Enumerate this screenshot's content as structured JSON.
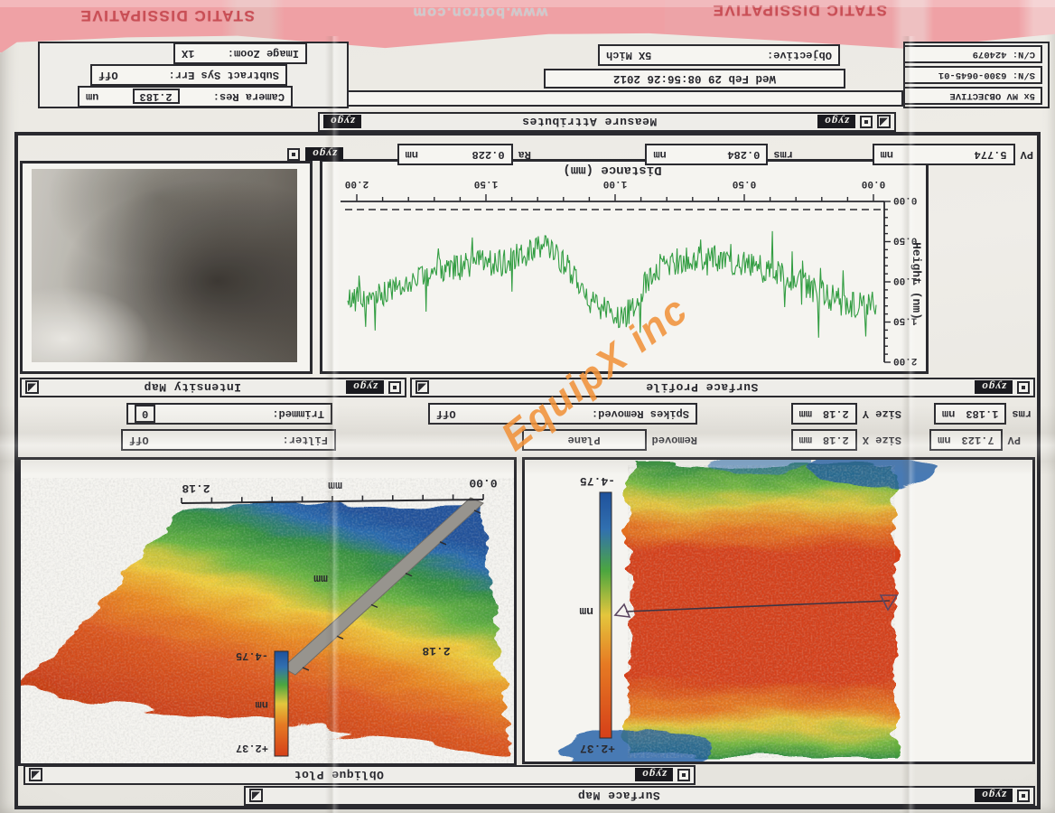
{
  "banner": {
    "left": "STATIC DISSIPATIVE",
    "center": "www.botron.com",
    "right": "STATIC DISSIPATIVE"
  },
  "watermark": "EquipX inc",
  "brand": "zygo",
  "windows": {
    "surface_map": {
      "title": "Surface Map",
      "z_top": "+2.37",
      "z_unit": "nm",
      "z_bottom": "-4.75"
    },
    "oblique_plot": {
      "title": "Oblique Plot",
      "x_start": "0.00",
      "x_unit": "mm",
      "x_end": "2.18",
      "y_end": "2.18",
      "y_unit": "mm",
      "z_top": "+2.37",
      "z_unit": "nm",
      "z_bottom": "-4.75"
    },
    "surface_profile": {
      "title": "Surface Profile",
      "xlabel": "Distance (mm)",
      "ylabel": "Height (nm)",
      "x_ticks": [
        "0.00",
        "0.50",
        "1.00",
        "1.50",
        "2.00"
      ],
      "y_ticks": [
        "2.00",
        "1.50",
        "1.00",
        "0.50",
        "0.00"
      ]
    },
    "intensity_map": {
      "title": "Intensity Map"
    }
  },
  "results_row": [
    {
      "label": "PV",
      "value": "5.774",
      "unit": "nm"
    },
    {
      "label": "rms",
      "value": "0.284",
      "unit": "nm"
    },
    {
      "label": "Ra",
      "value": "0.228",
      "unit": "nm"
    }
  ],
  "attr_rows": {
    "row1": [
      {
        "label": "PV",
        "value": "7.123",
        "unit": "nm"
      },
      {
        "label": "Size X",
        "value": "2.18",
        "unit": "mm"
      },
      {
        "label": "Removed",
        "value": "Plane",
        "unit": ""
      },
      {
        "label": "Filter:",
        "value": "Off",
        "unit": ""
      }
    ],
    "row2": [
      {
        "label": "rms",
        "value": "1.183",
        "unit": "nm"
      },
      {
        "label": "Size Y",
        "value": "2.18",
        "unit": "mm"
      },
      {
        "label": "Spikes Removed:",
        "value": "Off",
        "unit": ""
      },
      {
        "label": "Trimmed:",
        "value": "0",
        "unit": ""
      }
    ]
  },
  "measure_attributes": {
    "title": "Measure Attributes",
    "date": "Wed Feb 29 08:56:26 2012",
    "objective_label": "Objective:",
    "objective_value": "5X Mich",
    "camera_res_label": "Camera Res:",
    "camera_res_value": "2.183",
    "camera_res_unit": "um",
    "subtract_label": "Subtract Sys Err:",
    "subtract_value": "Off",
    "zoom_label": "Image Zoom:",
    "zoom_value": "1X"
  },
  "system_info": {
    "line1": "5x MV OBJECTIVE",
    "line2": "S/N: 6300-0645-01",
    "line3": "C/N: 424079"
  },
  "chart_data": [
    {
      "type": "line",
      "title": "Surface Profile",
      "xlabel": "Distance (mm)",
      "ylabel": "Height (nm)",
      "xlim": [
        0.0,
        2.18
      ],
      "ylim": [
        0.0,
        2.0
      ],
      "x_ticks": [
        0.0,
        0.5,
        1.0,
        1.5,
        2.0
      ],
      "y_ticks": [
        0.0,
        0.5,
        1.0,
        1.5,
        2.0
      ],
      "grid": false,
      "legend": "none",
      "series": [
        {
          "name": "surface height profile",
          "color": "#2f9e3f",
          "mean_nm": 0.93,
          "rms_nm": 0.284,
          "pv_nm": 5.774,
          "ra_nm": 0.228,
          "character": "dense noisy trace, dip near x=1.3mm, peak cluster near x=1.1mm"
        }
      ]
    },
    {
      "type": "heatmap",
      "title": "Surface Map",
      "unit": "nm",
      "scale_max": 2.37,
      "scale_min": -4.75,
      "size_x_mm": 2.18,
      "size_y_mm": 2.18,
      "description": "red/orange central horizontal band, yellow-green-blue toward top and bottom edges, horizontal slice line with triangle markers"
    },
    {
      "type": "heatmap",
      "title": "Oblique Plot",
      "unit": "nm",
      "scale_max": 2.37,
      "scale_min": -4.75,
      "axis_mm": [
        0.0,
        2.18
      ],
      "description": "3D oblique surface, red at one edge grading through yellow and green to blue at the other, gray side wall"
    }
  ]
}
